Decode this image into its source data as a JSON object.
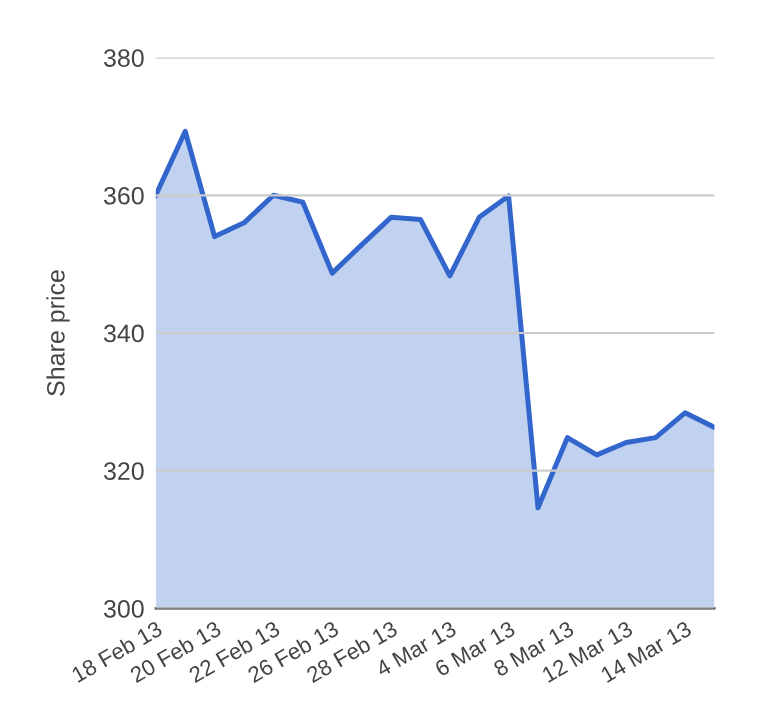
{
  "chart_data": {
    "type": "area",
    "ylabel": "Share price",
    "categories": [
      "18 Feb 13",
      null,
      "20 Feb 13",
      null,
      "22 Feb 13",
      null,
      "26 Feb 13",
      null,
      "28 Feb 13",
      null,
      "4 Mar 13",
      null,
      "6 Mar 13",
      null,
      "8 Mar 13",
      null,
      "12 Mar 13",
      null,
      "14 Mar 13",
      null
    ],
    "series": [
      {
        "color": "#3366cc",
        "values": [
          360.0,
          369.3,
          354.0,
          356.0,
          360.0,
          359.0,
          348.7,
          352.8,
          356.8,
          356.5,
          348.3,
          356.8,
          359.9,
          314.6,
          324.8,
          322.3,
          324.1,
          324.8,
          328.4,
          326.3
        ]
      }
    ],
    "ylim": [
      300,
      380
    ],
    "yticks": [
      300,
      320,
      340,
      360,
      380
    ],
    "grid": "y",
    "legend": false
  }
}
